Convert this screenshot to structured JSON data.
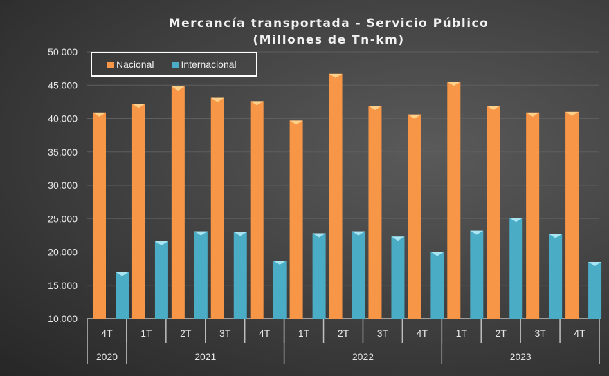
{
  "chart_data": {
    "type": "bar",
    "title": "Mercancía transportada  - Servicio Público",
    "subtitle": "(Millones de Tn-km)",
    "categories": [
      "4T",
      "1T",
      "2T",
      "3T",
      "4T",
      "1T",
      "2T",
      "3T",
      "4T",
      "1T",
      "2T",
      "3T",
      "4T"
    ],
    "groups": [
      {
        "label": "2020",
        "span": 1
      },
      {
        "label": "2021",
        "span": 4
      },
      {
        "label": "2022",
        "span": 4
      },
      {
        "label": "2023",
        "span": 4
      }
    ],
    "series": [
      {
        "name": "Nacional",
        "color": "#f79646",
        "values": [
          40900,
          42200,
          44800,
          43100,
          42600,
          39700,
          46700,
          41900,
          40600,
          45500,
          41900,
          40900,
          41000
        ]
      },
      {
        "name": "Internacional",
        "color": "#4bacc6",
        "values": [
          17000,
          21600,
          23100,
          23000,
          18700,
          22800,
          23100,
          22300,
          20000,
          23200,
          25100,
          22700,
          18500
        ]
      }
    ],
    "yticks": [
      "10.000",
      "15.000",
      "20.000",
      "25.000",
      "30.000",
      "35.000",
      "40.000",
      "45.000",
      "50.000"
    ],
    "ylim": [
      10000,
      50000
    ],
    "grid": true,
    "legend": "top-left"
  }
}
